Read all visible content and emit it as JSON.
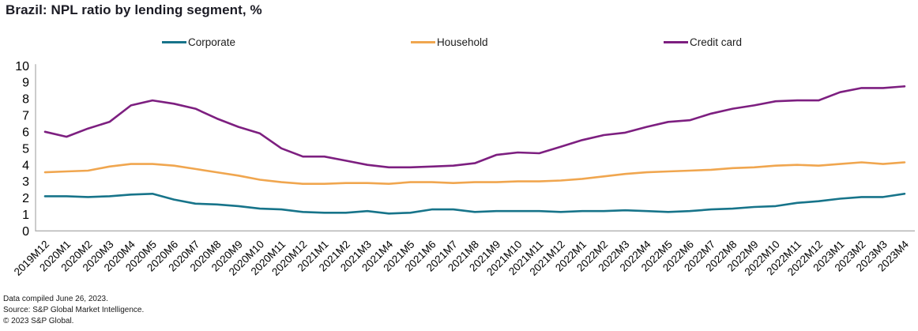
{
  "title": "Brazil: NPL ratio by lending segment, %",
  "footer": {
    "line1": "Data compiled June 26, 2023.",
    "line2": "Source: S&P Global Market Intelligence.",
    "line3": "© 2023 S&P Global."
  },
  "colors": {
    "axis": "#b0b0b0",
    "tick_text": "#000000",
    "corporate": "#17748a",
    "household": "#f0a64f",
    "credit_card": "#7d1f80"
  },
  "chart_data": {
    "type": "line",
    "title": "Brazil: NPL ratio by lending segment, %",
    "xlabel": "",
    "ylabel": "",
    "ylim": [
      0,
      10
    ],
    "yticks": [
      0,
      1,
      2,
      3,
      4,
      5,
      6,
      7,
      8,
      9,
      10
    ],
    "grid": false,
    "legend_position": "top",
    "categories": [
      "2019M12",
      "2020M1",
      "2020M2",
      "2020M3",
      "2020M4",
      "2020M5",
      "2020M6",
      "2020M7",
      "2020M8",
      "2020M9",
      "2020M10",
      "2020M11",
      "2020M12",
      "2021M1",
      "2021M2",
      "2021M3",
      "2021M4",
      "2021M5",
      "2021M6",
      "2021M7",
      "2021M8",
      "2021M9",
      "2021M10",
      "2021M11",
      "2021M12",
      "2022M1",
      "2022M2",
      "2022M3",
      "2022M4",
      "2022M5",
      "2022M6",
      "2022M7",
      "2022M8",
      "2022M9",
      "2022M10",
      "2022M11",
      "2022M12",
      "2023M1",
      "2023M2",
      "2023M3",
      "2023M4"
    ],
    "series": [
      {
        "name": "Corporate",
        "color": "#17748a",
        "values": [
          2.1,
          2.1,
          2.05,
          2.1,
          2.2,
          2.25,
          1.9,
          1.65,
          1.6,
          1.5,
          1.35,
          1.3,
          1.15,
          1.1,
          1.1,
          1.2,
          1.05,
          1.1,
          1.3,
          1.3,
          1.15,
          1.2,
          1.2,
          1.2,
          1.15,
          1.2,
          1.2,
          1.25,
          1.2,
          1.15,
          1.2,
          1.3,
          1.35,
          1.45,
          1.5,
          1.7,
          1.8,
          1.95,
          2.05,
          2.05,
          2.25
        ]
      },
      {
        "name": "Household",
        "color": "#f0a64f",
        "values": [
          3.55,
          3.6,
          3.65,
          3.9,
          4.05,
          4.05,
          3.95,
          3.75,
          3.55,
          3.35,
          3.1,
          2.95,
          2.85,
          2.85,
          2.9,
          2.9,
          2.85,
          2.95,
          2.95,
          2.9,
          2.95,
          2.95,
          3.0,
          3.0,
          3.05,
          3.15,
          3.3,
          3.45,
          3.55,
          3.6,
          3.65,
          3.7,
          3.8,
          3.85,
          3.95,
          4.0,
          3.95,
          4.05,
          4.15,
          4.05,
          4.15
        ]
      },
      {
        "name": "Credit card",
        "color": "#7d1f80",
        "values": [
          6.0,
          5.7,
          6.2,
          6.6,
          7.6,
          7.9,
          7.7,
          7.4,
          6.8,
          6.3,
          5.9,
          5.0,
          4.5,
          4.5,
          4.25,
          4.0,
          3.85,
          3.85,
          3.9,
          3.95,
          4.1,
          4.6,
          4.75,
          4.7,
          5.1,
          5.5,
          5.8,
          5.95,
          6.3,
          6.6,
          6.7,
          7.1,
          7.4,
          7.6,
          7.85,
          7.9,
          7.9,
          8.4,
          8.65,
          8.65,
          8.75
        ]
      }
    ]
  }
}
